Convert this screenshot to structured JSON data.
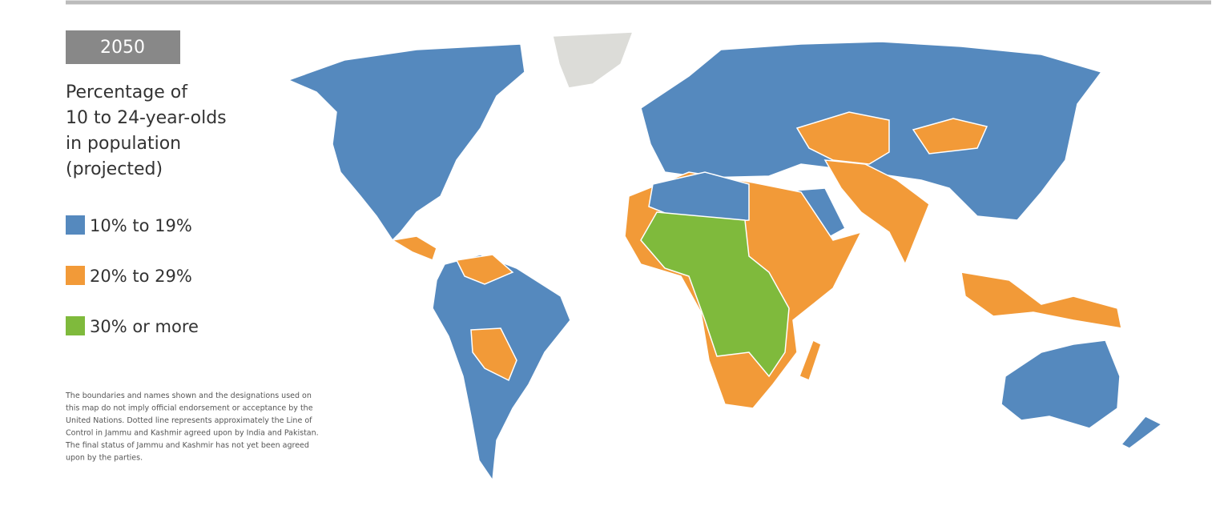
{
  "badge": "2050",
  "legend": {
    "title": [
      "Percentage of",
      "10 to 24-year-olds",
      "in population",
      "(projected)"
    ],
    "items": [
      {
        "label": "10% to 19%",
        "color": "#5589be"
      },
      {
        "label": "20% to 29%",
        "color": "#f29a38"
      },
      {
        "label": "30% or more",
        "color": "#7fba3c"
      }
    ]
  },
  "disclaimer": [
    "The boundaries and names shown and the designations used on",
    "this map do not imply official endorsement or acceptance by the",
    "United Nations. Dotted line represents approximately the Line of",
    "Control in Jammu and Kashmir agreed upon by India and Pakistan.",
    "The final status of Jammu and Kashmir has not yet been agreed",
    "upon by the parties."
  ]
}
